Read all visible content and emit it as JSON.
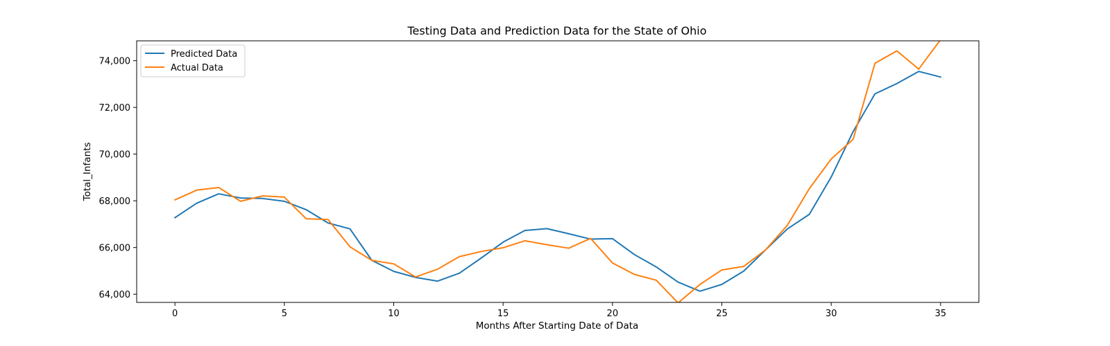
{
  "chart_data": {
    "type": "line",
    "title": "Testing Data and Prediction Data for the State of Ohio",
    "xlabel": "Months After Starting Date of Data",
    "ylabel": "Total_Infants",
    "xlim": [
      -1.75,
      36.75
    ],
    "ylim": [
      63650,
      74850
    ],
    "x_ticks": [
      0,
      5,
      10,
      15,
      20,
      25,
      30,
      35
    ],
    "y_ticks": [
      64000,
      66000,
      68000,
      70000,
      72000,
      74000
    ],
    "y_tick_labels": [
      "64,000",
      "66,000",
      "68,000",
      "70,000",
      "72,000",
      "74,000"
    ],
    "grid": false,
    "legend_position": "upper-left",
    "x": [
      0,
      1,
      2,
      3,
      4,
      5,
      6,
      7,
      8,
      9,
      10,
      11,
      12,
      13,
      14,
      15,
      16,
      17,
      18,
      19,
      20,
      21,
      22,
      23,
      24,
      25,
      26,
      27,
      28,
      29,
      30,
      31,
      32,
      33,
      34,
      35
    ],
    "series": [
      {
        "name": "Predicted Data",
        "color": "#1f77b4",
        "values": [
          67280,
          67900,
          68300,
          68120,
          68100,
          67980,
          67620,
          67050,
          66800,
          65450,
          64980,
          64720,
          64560,
          64900,
          65550,
          66230,
          66730,
          66810,
          66590,
          66360,
          66380,
          65700,
          65170,
          64520,
          64130,
          64420,
          64990,
          65900,
          66800,
          67420,
          69020,
          70960,
          72580,
          73020,
          73540,
          73300
        ]
      },
      {
        "name": "Actual Data",
        "color": "#ff7f0e",
        "values": [
          68040,
          68460,
          68570,
          67980,
          68210,
          68160,
          67230,
          67200,
          66030,
          65450,
          65300,
          64740,
          65070,
          65610,
          65830,
          65990,
          66290,
          66120,
          65970,
          66390,
          65340,
          64850,
          64600,
          63630,
          64420,
          65040,
          65190,
          65900,
          66960,
          68520,
          69790,
          70630,
          73890,
          74420,
          73640,
          74900
        ]
      }
    ]
  }
}
